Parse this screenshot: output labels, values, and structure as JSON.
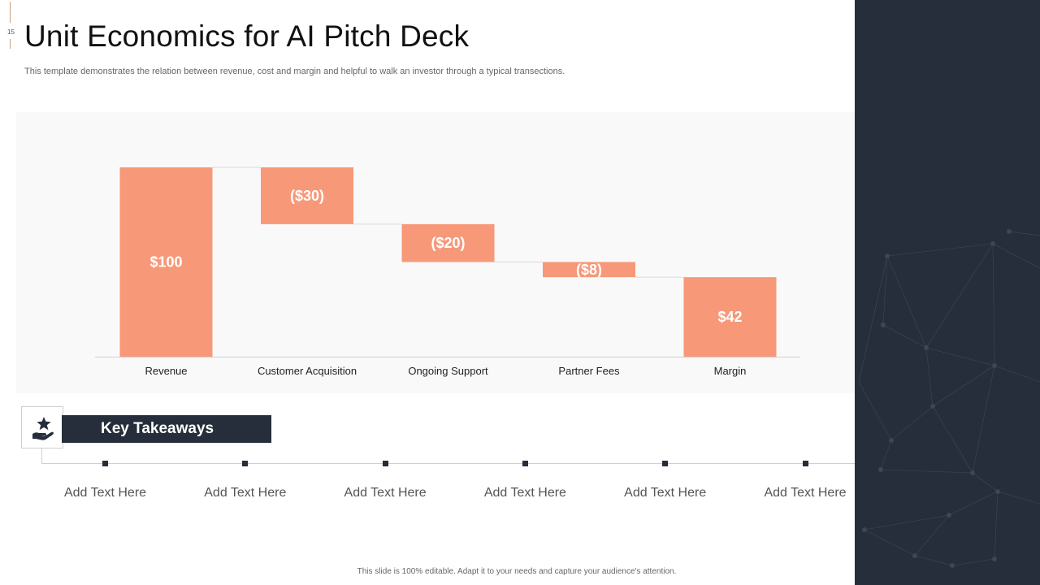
{
  "slide": {
    "number": "15",
    "title": "Unit Economics for AI Pitch Deck",
    "subtitle": "This template demonstrates the relation between revenue, cost and margin and helpful to walk an investor through a typical transections.",
    "footer": "This slide is 100% editable. Adapt it to your needs and capture your audience's attention."
  },
  "colors": {
    "bar": "#f79878",
    "dark": "#252e3a",
    "connector": "#d9d9d9",
    "axis": "#d0d0d0"
  },
  "chart_data": {
    "type": "bar",
    "subtype": "waterfall",
    "categories": [
      "Revenue",
      "Customer Acquisition",
      "Ongoing Support",
      "Partner Fees",
      "Margin"
    ],
    "values": [
      100,
      -30,
      -20,
      -8,
      42
    ],
    "data_labels": [
      "$100",
      "($30)",
      "($20)",
      "($8)",
      "$42"
    ],
    "ylim": [
      0,
      100
    ],
    "grid": false,
    "legend": "none"
  },
  "takeaways": {
    "heading": "Key Takeaways",
    "icon": "hand-star-icon",
    "items": [
      "Add Text Here",
      "Add Text Here",
      "Add Text Here",
      "Add Text Here",
      "Add Text Here",
      "Add Text Here"
    ]
  }
}
